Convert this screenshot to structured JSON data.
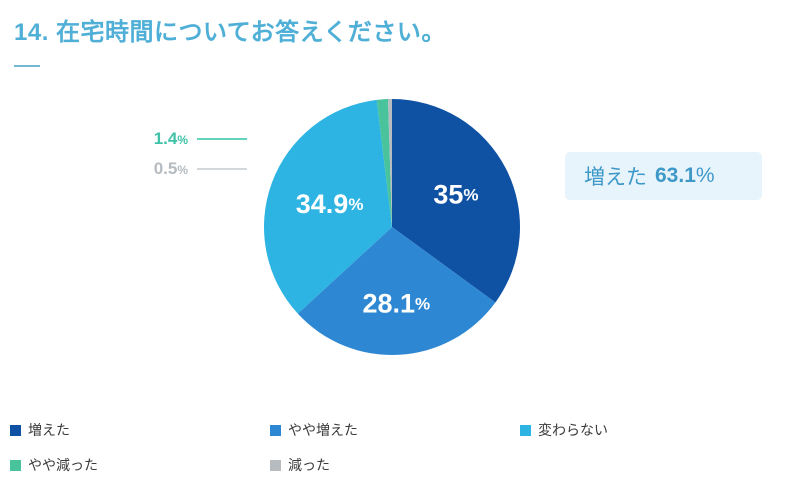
{
  "title": "14. 在宅時間についてお答えください。",
  "callout": {
    "label": "増えた",
    "value": "63.1",
    "percent_sign": "%"
  },
  "chart_data": {
    "type": "pie",
    "title": "14. 在宅時間についてお答えください。",
    "start_angle": "top",
    "direction": "clockwise",
    "percent_sign": "%",
    "legend_position": "bottom",
    "annotation": "増えた 63.1%",
    "slices": [
      {
        "label": "増えた",
        "value": 35.0,
        "display": "35",
        "color": "#0f52a4",
        "label_inside": true,
        "label_r": 0.56
      },
      {
        "label": "やや増えた",
        "value": 28.1,
        "display": "28.1",
        "color": "#2d87d2",
        "label_inside": true,
        "label_r": 0.6
      },
      {
        "label": "変わらない",
        "value": 34.9,
        "display": "34.9",
        "color": "#2db4e2",
        "label_inside": true,
        "label_r": 0.52
      },
      {
        "label": "やや減った",
        "value": 1.4,
        "display": "1.4",
        "color": "#48c39c",
        "label_inside": false
      },
      {
        "label": "減った",
        "value": 0.5,
        "display": "0.5",
        "color": "#b7bcc1",
        "label_inside": false
      }
    ]
  },
  "colors": {
    "title_text": "#4fafd7",
    "callout_bg": "#e8f4fb",
    "callout_text": "#3e99c9",
    "outside_label_green": "#3fc2a8",
    "outside_label_gray": "#b4bbc1",
    "legend_text": "#3b3b3b"
  }
}
